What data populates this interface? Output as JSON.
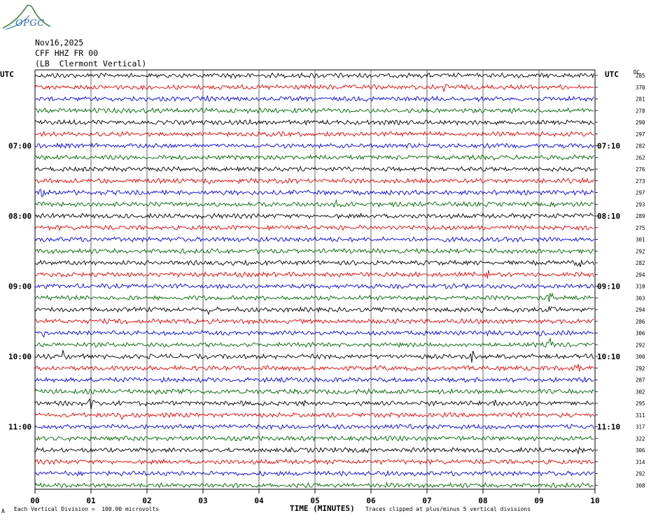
{
  "header": {
    "logo_text": "OPGC",
    "date": "Nov16,2025",
    "station": "CFF HHZ FR 00",
    "location": "(LB  Clermont Vertical)"
  },
  "left_axis_title": "UTC",
  "right_axis_title": "UTC",
  "dc_title": "DC",
  "footer": {
    "scale_note": "Each Vertical Division =  100.00 microvolts",
    "clip_note": "Traces clipped at plus/minus 5 vertical divisions",
    "corner_mark": "A"
  },
  "colors": {
    "trace_cycle": [
      "#000000",
      "#e00000",
      "#0000e0",
      "#006400"
    ],
    "grid": "#000000",
    "background": "#ffffff",
    "logo": "#2a6bb0"
  },
  "chart_data": {
    "type": "line",
    "title": "CFF HHZ FR 00 (LB  Clermont Vertical) Nov16,2025",
    "xlabel": "TIME (MINUTES)",
    "ylabel": "UTC",
    "xlim": [
      0,
      10
    ],
    "x_ticks": [
      "00",
      "01",
      "02",
      "03",
      "04",
      "05",
      "06",
      "07",
      "08",
      "09",
      "10"
    ],
    "grid": true,
    "trace_count": 36,
    "minutes_per_trace": 10,
    "left_time_labels": [
      {
        "trace": 6,
        "label": "07:00"
      },
      {
        "trace": 12,
        "label": "08:00"
      },
      {
        "trace": 18,
        "label": "09:00"
      },
      {
        "trace": 24,
        "label": "10:00"
      },
      {
        "trace": 30,
        "label": "11:00"
      }
    ],
    "right_time_labels": [
      {
        "trace": 6,
        "label": "07:10"
      },
      {
        "trace": 12,
        "label": "08:10"
      },
      {
        "trace": 18,
        "label": "09:10"
      },
      {
        "trace": 24,
        "label": "10:10"
      },
      {
        "trace": 30,
        "label": "11:10"
      }
    ],
    "dc_offsets": [
      285,
      370,
      281,
      278,
      290,
      297,
      282,
      262,
      276,
      273,
      297,
      293,
      289,
      275,
      301,
      292,
      282,
      294,
      310,
      303,
      294,
      286,
      306,
      292,
      300,
      292,
      287,
      302,
      295,
      311,
      317,
      322,
      306,
      314,
      292,
      308
    ],
    "events": [
      {
        "trace": 1,
        "minute": 7.3,
        "amp": 4
      },
      {
        "trace": 2,
        "minute": 3.1,
        "amp": 2
      },
      {
        "trace": 6,
        "minute": 1.2,
        "amp": 2
      },
      {
        "trace": 7,
        "minute": 5.3,
        "amp": 3
      },
      {
        "trace": 8,
        "minute": 7.6,
        "amp": 3
      },
      {
        "trace": 9,
        "minute": 1.4,
        "amp": 4
      },
      {
        "trace": 9,
        "minute": 3.1,
        "amp": 4
      },
      {
        "trace": 10,
        "minute": 0.15,
        "amp": 7
      },
      {
        "trace": 11,
        "minute": 5.4,
        "amp": 4
      },
      {
        "trace": 12,
        "minute": 9.3,
        "amp": 5
      },
      {
        "trace": 16,
        "minute": 9.7,
        "amp": 5
      },
      {
        "trace": 17,
        "minute": 8.1,
        "amp": 3
      },
      {
        "trace": 19,
        "minute": 9.2,
        "amp": 8
      },
      {
        "trace": 20,
        "minute": 3.1,
        "amp": 4
      },
      {
        "trace": 20,
        "minute": 8.0,
        "amp": 4
      },
      {
        "trace": 20,
        "minute": 9.2,
        "amp": 6
      },
      {
        "trace": 21,
        "minute": 1.6,
        "amp": 5
      },
      {
        "trace": 22,
        "minute": 0.15,
        "amp": 5
      },
      {
        "trace": 22,
        "minute": 9.0,
        "amp": 3
      },
      {
        "trace": 23,
        "minute": 9.2,
        "amp": 6
      },
      {
        "trace": 24,
        "minute": 0.5,
        "amp": 4
      },
      {
        "trace": 24,
        "minute": 7.8,
        "amp": 8
      },
      {
        "trace": 25,
        "minute": 9.7,
        "amp": 5
      },
      {
        "trace": 27,
        "minute": 2.7,
        "amp": 4
      },
      {
        "trace": 28,
        "minute": 1.0,
        "amp": 6
      },
      {
        "trace": 28,
        "minute": 4.8,
        "amp": 3
      },
      {
        "trace": 28,
        "minute": 8.2,
        "amp": 4
      },
      {
        "trace": 29,
        "minute": 1.55,
        "amp": 5
      },
      {
        "trace": 32,
        "minute": 9.7,
        "amp": 3
      }
    ]
  }
}
